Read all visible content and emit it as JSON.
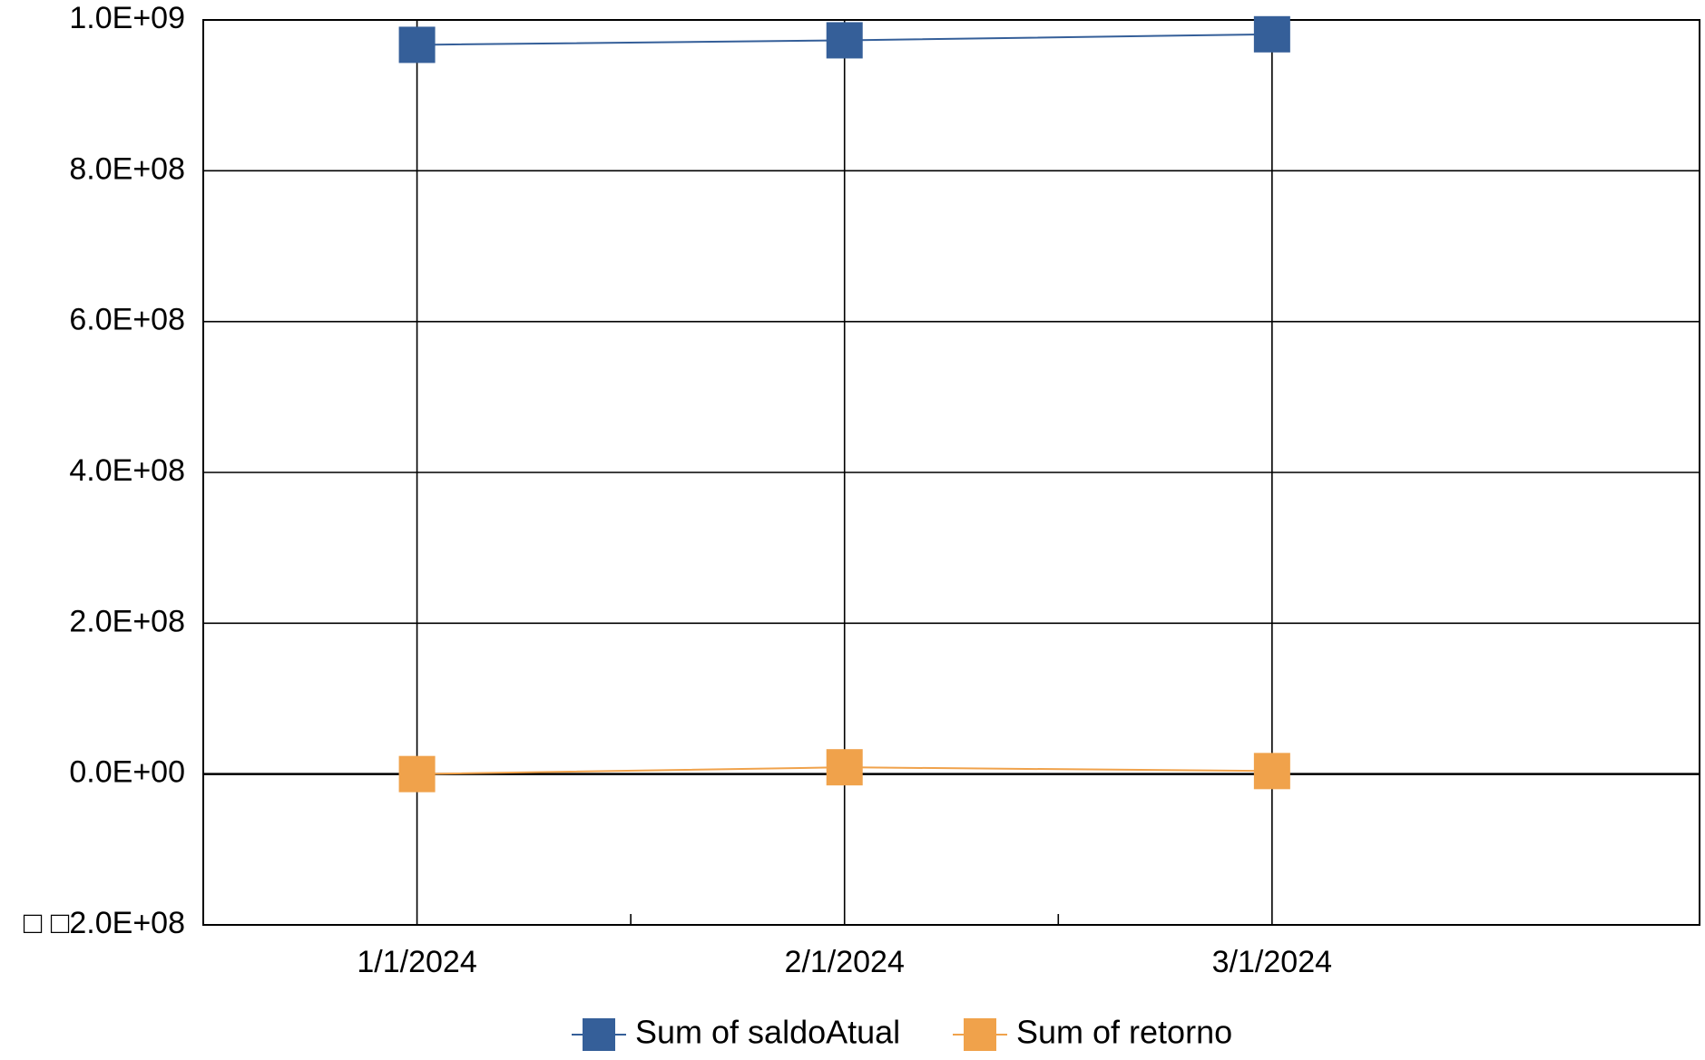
{
  "chart_data": {
    "type": "line",
    "title": "",
    "xlabel": "",
    "ylabel": "",
    "categories": [
      "1/1/2024",
      "2/1/2024",
      "3/1/2024"
    ],
    "ylim": [
      -200000000,
      1000000000
    ],
    "y_ticks": [
      -200000000,
      0,
      200000000,
      400000000,
      600000000,
      800000000,
      1000000000
    ],
    "y_tick_labels": [
      "□ □2.0E+08",
      "0.0E+00",
      "2.0E+08",
      "4.0E+08",
      "6.0E+08",
      "8.0E+08",
      "1.0E+09"
    ],
    "grid": true,
    "legend_position": "bottom",
    "series": [
      {
        "name": "Sum of saldoAtual",
        "color": "#355f99",
        "marker": "square",
        "values": [
          967000000,
          973000000,
          981000000
        ]
      },
      {
        "name": "Sum of retorno",
        "color": "#f0a24b",
        "marker": "square",
        "values": [
          0,
          9000000,
          4000000
        ]
      }
    ]
  }
}
